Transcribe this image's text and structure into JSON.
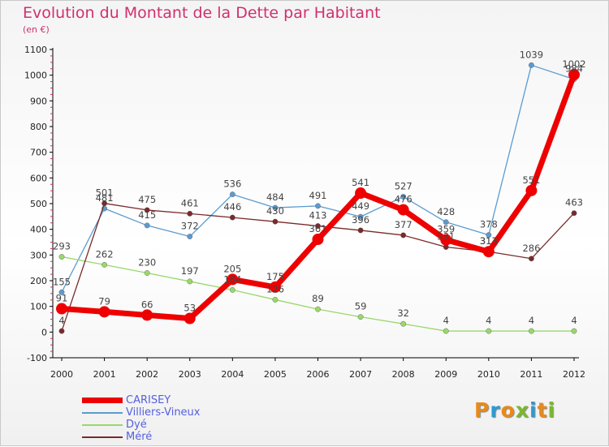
{
  "title": "Evolution du Montant de la Dette par Habitant",
  "unit": "(en €)",
  "brand": {
    "text": "Proxiti",
    "colors": [
      "#e88a1a",
      "#2e9ad0",
      "#e88a1a",
      "#7ab82e",
      "#2e9ad0",
      "#e88a1a",
      "#7ab82e"
    ]
  },
  "colors": {
    "title": "#d0306e",
    "legend_text": "#5560e0",
    "axis": "#000000",
    "axis_tick_marks": "#d0306e"
  },
  "chart_data": {
    "type": "line",
    "title": "Evolution du Montant de la Dette par Habitant",
    "subtitle": "(en €)",
    "xlabel": "",
    "ylabel": "",
    "x": [
      "2000",
      "2001",
      "2002",
      "2003",
      "2004",
      "2005",
      "2006",
      "2007",
      "2008",
      "2009",
      "2010",
      "2011",
      "2012"
    ],
    "ylim": [
      -100,
      1100
    ],
    "yticks": [
      -100,
      0,
      100,
      200,
      300,
      400,
      500,
      600,
      700,
      800,
      900,
      1000,
      1100
    ],
    "grid": false,
    "legend_position": "bottom-left",
    "series": [
      {
        "name": "CARISEY",
        "color": "#ee0000",
        "style": "thick",
        "values": [
          91,
          79,
          66,
          53,
          205,
          175,
          361,
          541,
          476,
          359,
          313,
          551,
          1002
        ]
      },
      {
        "name": "Villiers-Vineux",
        "color": "#5b9bd0",
        "style": "thin",
        "values": [
          155,
          481,
          415,
          372,
          536,
          484,
          491,
          449,
          527,
          428,
          378,
          1039,
          984
        ]
      },
      {
        "name": "Dyé",
        "color": "#99d86a",
        "style": "thin",
        "values": [
          293,
          262,
          230,
          197,
          164,
          126,
          89,
          59,
          32,
          4,
          4,
          4,
          4
        ]
      },
      {
        "name": "Méré",
        "color": "#7a2a2a",
        "style": "thin",
        "values": [
          4,
          501,
          475,
          461,
          446,
          430,
          413,
          396,
          377,
          331,
          313,
          286,
          463
        ]
      }
    ]
  }
}
